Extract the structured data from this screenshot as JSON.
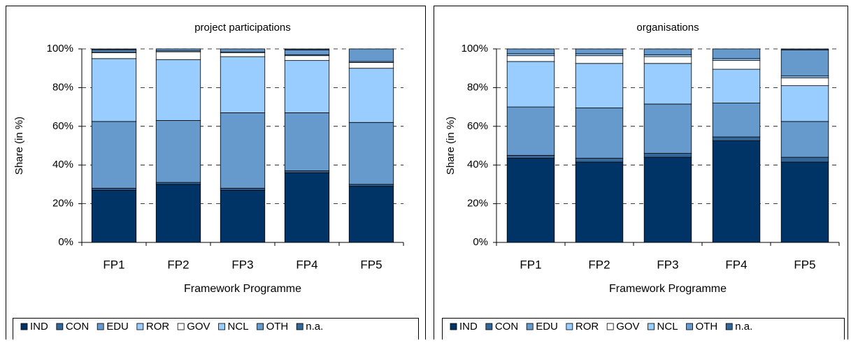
{
  "chart_data": [
    {
      "type": "bar",
      "stacked": true,
      "title": "project participations",
      "xlabel": "Framework Programme",
      "ylabel": "Share (in %)",
      "categories": [
        "FP1",
        "FP2",
        "FP3",
        "FP4",
        "FP5"
      ],
      "ylim": [
        0,
        100
      ],
      "yticks": [
        {
          "value": 0,
          "label": "0%"
        },
        {
          "value": 20,
          "label": "20%"
        },
        {
          "value": 40,
          "label": "40%"
        },
        {
          "value": 60,
          "label": "60%"
        },
        {
          "value": 80,
          "label": "80%"
        },
        {
          "value": 100,
          "label": "100%"
        }
      ],
      "grid": true,
      "legend": "bottom",
      "series": [
        {
          "name": "IND",
          "color": "#003366",
          "values": [
            27,
            30,
            27,
            36,
            29
          ]
        },
        {
          "name": "CON",
          "color": "#336699",
          "values": [
            1,
            1,
            1,
            1,
            1
          ]
        },
        {
          "name": "EDU",
          "color": "#6699cc",
          "values": [
            34.5,
            32,
            39,
            30,
            32
          ]
        },
        {
          "name": "ROR",
          "color": "#99ccff",
          "values": [
            32.5,
            31.5,
            29,
            27,
            28
          ]
        },
        {
          "name": "GOV",
          "color": "#ffffff",
          "values": [
            3,
            4,
            2,
            2.5,
            3
          ]
        },
        {
          "name": "NCL",
          "color": "#99ccff",
          "values": [
            0.5,
            0.5,
            0.5,
            0.5,
            0.5
          ]
        },
        {
          "name": "OTH",
          "color": "#6699cc",
          "values": [
            1,
            1,
            1.5,
            2.5,
            6.5
          ]
        },
        {
          "name": "n.a.",
          "color": "#336699",
          "values": [
            0.5,
            0,
            0,
            0.5,
            0
          ]
        }
      ]
    },
    {
      "type": "bar",
      "stacked": true,
      "title": "organisations",
      "xlabel": "Framework Programme",
      "ylabel": "Share (in %)",
      "categories": [
        "FP1",
        "FP2",
        "FP3",
        "FP4",
        "FP5"
      ],
      "ylim": [
        0,
        100
      ],
      "yticks": [
        {
          "value": 0,
          "label": "0%"
        },
        {
          "value": 20,
          "label": "20%"
        },
        {
          "value": 40,
          "label": "40%"
        },
        {
          "value": 60,
          "label": "60%"
        },
        {
          "value": 80,
          "label": "80%"
        },
        {
          "value": 100,
          "label": "100%"
        }
      ],
      "grid": true,
      "legend": "bottom",
      "series": [
        {
          "name": "IND",
          "color": "#003366",
          "values": [
            43.5,
            41.5,
            44,
            52.5,
            41.5
          ]
        },
        {
          "name": "CON",
          "color": "#336699",
          "values": [
            1.5,
            2,
            2,
            2,
            2.5
          ]
        },
        {
          "name": "EDU",
          "color": "#6699cc",
          "values": [
            25,
            26,
            25.5,
            17.5,
            18.5
          ]
        },
        {
          "name": "ROR",
          "color": "#99ccff",
          "values": [
            23.5,
            23,
            21,
            17.5,
            18.5
          ]
        },
        {
          "name": "GOV",
          "color": "#ffffff",
          "values": [
            3,
            4,
            3.5,
            4.5,
            4
          ]
        },
        {
          "name": "NCL",
          "color": "#99ccff",
          "values": [
            1,
            1,
            1,
            1,
            1
          ]
        },
        {
          "name": "OTH",
          "color": "#6699cc",
          "values": [
            2.5,
            2.5,
            3,
            5,
            13.5
          ]
        },
        {
          "name": "n.a.",
          "color": "#336699",
          "values": [
            0,
            0,
            0,
            0,
            0.5
          ]
        }
      ]
    }
  ]
}
